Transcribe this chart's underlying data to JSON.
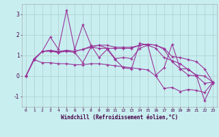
{
  "xlabel": "Windchill (Refroidissement éolien,°C)",
  "background_color": "#c8eef0",
  "grid_color": "#b0cccc",
  "line_color": "#993399",
  "xlim": [
    -0.5,
    23.5
  ],
  "ylim": [
    -1.5,
    3.5
  ],
  "yticks": [
    -1,
    0,
    1,
    2,
    3
  ],
  "xticks": [
    0,
    1,
    2,
    3,
    4,
    5,
    6,
    7,
    8,
    9,
    10,
    11,
    12,
    13,
    14,
    15,
    16,
    17,
    18,
    19,
    20,
    21,
    22,
    23
  ],
  "series": [
    [
      0.0,
      0.8,
      1.2,
      1.9,
      1.3,
      3.2,
      1.3,
      2.5,
      1.5,
      0.9,
      1.3,
      0.8,
      0.4,
      0.35,
      1.6,
      1.5,
      0.05,
      0.4,
      1.55,
      0.35,
      0.05,
      0.0,
      -1.2,
      -0.35
    ],
    [
      0.0,
      0.8,
      1.2,
      1.2,
      1.15,
      1.2,
      1.15,
      0.65,
      1.4,
      1.35,
      1.35,
      0.85,
      0.9,
      0.85,
      1.35,
      1.5,
      1.35,
      0.9,
      0.75,
      0.6,
      0.3,
      0.05,
      0.0,
      -0.3
    ],
    [
      0.0,
      0.85,
      1.2,
      1.25,
      1.15,
      1.25,
      1.2,
      1.3,
      1.45,
      1.5,
      1.5,
      1.4,
      1.4,
      1.4,
      1.5,
      1.55,
      1.5,
      1.35,
      0.95,
      0.9,
      0.8,
      0.7,
      0.35,
      -0.3
    ],
    [
      0.0,
      0.8,
      0.65,
      0.65,
      0.6,
      0.6,
      0.55,
      0.55,
      0.6,
      0.6,
      0.55,
      0.5,
      0.45,
      0.4,
      0.35,
      0.3,
      0.0,
      -0.6,
      -0.55,
      -0.75,
      -0.65,
      -0.7,
      -0.8,
      -0.3
    ],
    [
      0.0,
      0.8,
      1.2,
      1.25,
      1.2,
      1.25,
      1.2,
      1.3,
      1.4,
      1.5,
      1.35,
      1.35,
      1.35,
      1.35,
      1.5,
      1.55,
      1.5,
      1.3,
      0.7,
      0.35,
      0.35,
      0.0,
      -0.35,
      -0.3
    ]
  ]
}
